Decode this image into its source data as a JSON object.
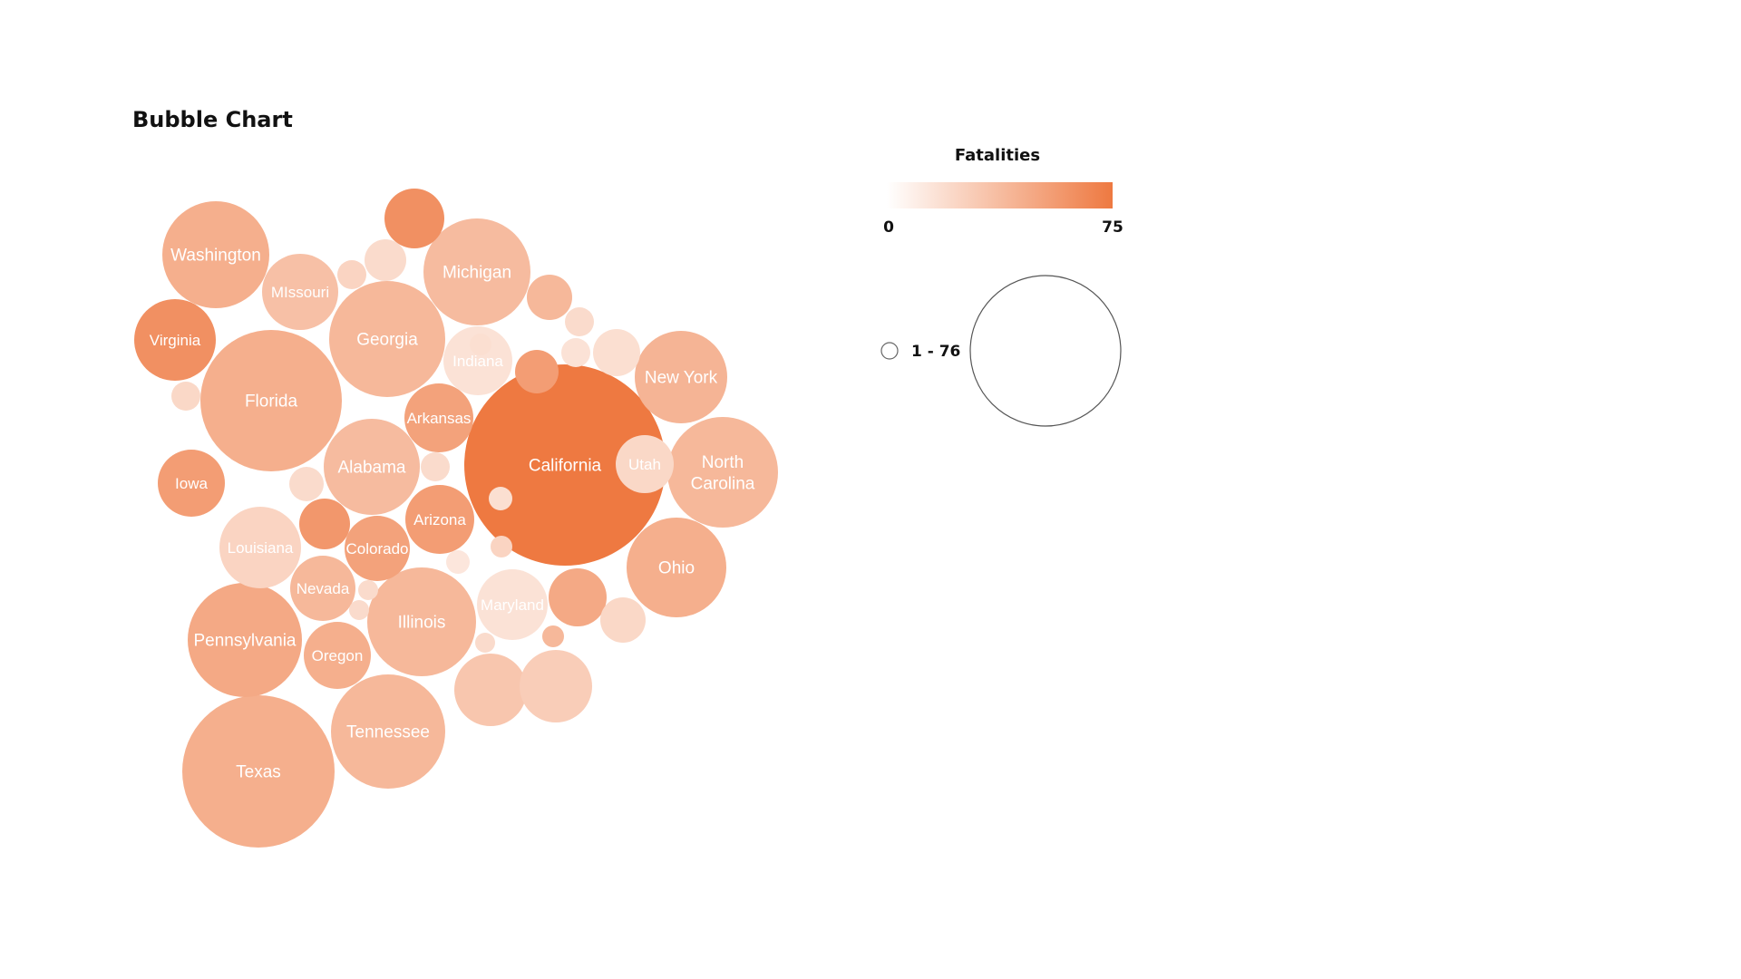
{
  "title": "Bubble Chart",
  "chart_data": {
    "type": "bubble",
    "title": "Bubble Chart",
    "color_scale": {
      "title": "Fatalities",
      "min": 0,
      "max": 75,
      "min_label": "0",
      "max_label": "75",
      "color_low": "#ffffff",
      "color_high": "#ee7941"
    },
    "size_legend": {
      "range_label": "1 - 76",
      "min": 1,
      "max": 76
    },
    "bubbles": [
      {
        "label": "California",
        "value": 76,
        "color_value": 75
      },
      {
        "label": "Texas",
        "value": 44,
        "color_value": 45
      },
      {
        "label": "Florida",
        "value": 38,
        "color_value": 45
      },
      {
        "label": "Pennsylvania",
        "value": 25,
        "color_value": 48
      },
      {
        "label": "Illinois",
        "value": 23,
        "color_value": 40
      },
      {
        "label": "Tennessee",
        "value": 25,
        "color_value": 40
      },
      {
        "label": "Georgia",
        "value": 25,
        "color_value": 40
      },
      {
        "label": "Michigan",
        "value": 22,
        "color_value": 38
      },
      {
        "label": "North Carolina",
        "value": 23,
        "color_value": 40
      },
      {
        "label": "Washington",
        "value": 22,
        "color_value": 45
      },
      {
        "label": "Alabama",
        "value": 18,
        "color_value": 38
      },
      {
        "label": "Ohio",
        "value": 19,
        "color_value": 45
      },
      {
        "label": "New York",
        "value": 17,
        "color_value": 42
      },
      {
        "label": "Virginia",
        "value": 13,
        "color_value": 62
      },
      {
        "label": "Louisiana",
        "value": 13,
        "color_value": 24
      },
      {
        "label": "Missouri",
        "value": 11,
        "color_value": 35
      },
      {
        "label": "Indiana",
        "value": 9,
        "color_value": 16
      },
      {
        "label": "Arkansas",
        "value": 9,
        "color_value": 52
      },
      {
        "label": "Arizona",
        "value": 9,
        "color_value": 55
      },
      {
        "label": "Oregon",
        "value": 8,
        "color_value": 45
      },
      {
        "label": "Maryland",
        "value": 9,
        "color_value": 16
      },
      {
        "label": "Colorado",
        "value": 8,
        "color_value": 52
      },
      {
        "label": "Iowa",
        "value": 5,
        "color_value": 55
      },
      {
        "label": "Nevada",
        "value": 5,
        "color_value": 40
      },
      {
        "label": "Utah",
        "value": 5,
        "color_value": 22
      },
      {
        "label": "",
        "value": 9,
        "color_value": 32
      },
      {
        "label": "",
        "value": 9,
        "color_value": 28
      },
      {
        "label": "",
        "value": 8,
        "color_value": 48
      },
      {
        "label": "",
        "value": 8,
        "color_value": 40
      },
      {
        "label": "",
        "value": 6,
        "color_value": 55
      },
      {
        "label": "",
        "value": 5,
        "color_value": 62
      },
      {
        "label": "",
        "value": 4,
        "color_value": 58
      },
      {
        "label": "",
        "value": 4,
        "color_value": 20
      },
      {
        "label": "",
        "value": 4,
        "color_value": 22
      },
      {
        "label": "",
        "value": 4,
        "color_value": 18
      },
      {
        "label": "",
        "value": 2,
        "color_value": 20
      },
      {
        "label": "",
        "value": 2,
        "color_value": 24
      },
      {
        "label": "",
        "value": 2,
        "color_value": 20
      },
      {
        "label": "",
        "value": 2,
        "color_value": 16
      },
      {
        "label": "",
        "value": 1,
        "color_value": 20
      },
      {
        "label": "",
        "value": 1,
        "color_value": 18
      },
      {
        "label": "",
        "value": 1,
        "color_value": 14
      },
      {
        "label": "",
        "value": 1,
        "color_value": 18
      },
      {
        "label": "",
        "value": 1,
        "color_value": 24
      },
      {
        "label": "",
        "value": 1,
        "color_value": 22
      },
      {
        "label": "",
        "value": 1,
        "color_value": 20
      },
      {
        "label": "",
        "value": 1,
        "color_value": 20
      },
      {
        "label": "",
        "value": 1,
        "color_value": 40
      },
      {
        "label": "",
        "value": 1,
        "color_value": 20
      }
    ]
  }
}
